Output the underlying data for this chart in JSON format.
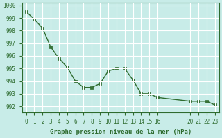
{
  "x": [
    0,
    1,
    2,
    3,
    4,
    5,
    6,
    7,
    8,
    9,
    10,
    11,
    12,
    13,
    14,
    15,
    16,
    20,
    21,
    22,
    23
  ],
  "y": [
    999.5,
    998.9,
    998.2,
    996.7,
    995.8,
    995.1,
    994.0,
    993.5,
    993.5,
    993.8,
    994.8,
    995.0,
    995.0,
    994.1,
    993.0,
    993.0,
    992.7,
    992.4,
    992.4,
    992.4,
    992.1
  ],
  "line_color": "#2e6b2e",
  "marker_color": "#2e6b2e",
  "bg_color": "#c8ece8",
  "grid_color": "#ffffff",
  "axis_label_color": "#2e6b2e",
  "tick_color": "#2e6b2e",
  "xlabel": "Graphe pression niveau de la mer (hPa)",
  "ylim": [
    991.5,
    1000.2
  ],
  "xlim": [
    -0.5,
    23.5
  ],
  "yticks": [
    992,
    993,
    994,
    995,
    996,
    997,
    998,
    999,
    1000
  ],
  "xticks": [
    0,
    1,
    2,
    3,
    4,
    5,
    6,
    7,
    8,
    9,
    10,
    11,
    12,
    13,
    14,
    15,
    16,
    20,
    21,
    22,
    23
  ],
  "xtick_labels": [
    "0",
    "1",
    "2",
    "3",
    "4",
    "5",
    "6",
    "7",
    "8",
    "9",
    "10",
    "11",
    "12",
    "13",
    "14",
    "15",
    "16",
    "20",
    "21",
    "22",
    "23"
  ]
}
